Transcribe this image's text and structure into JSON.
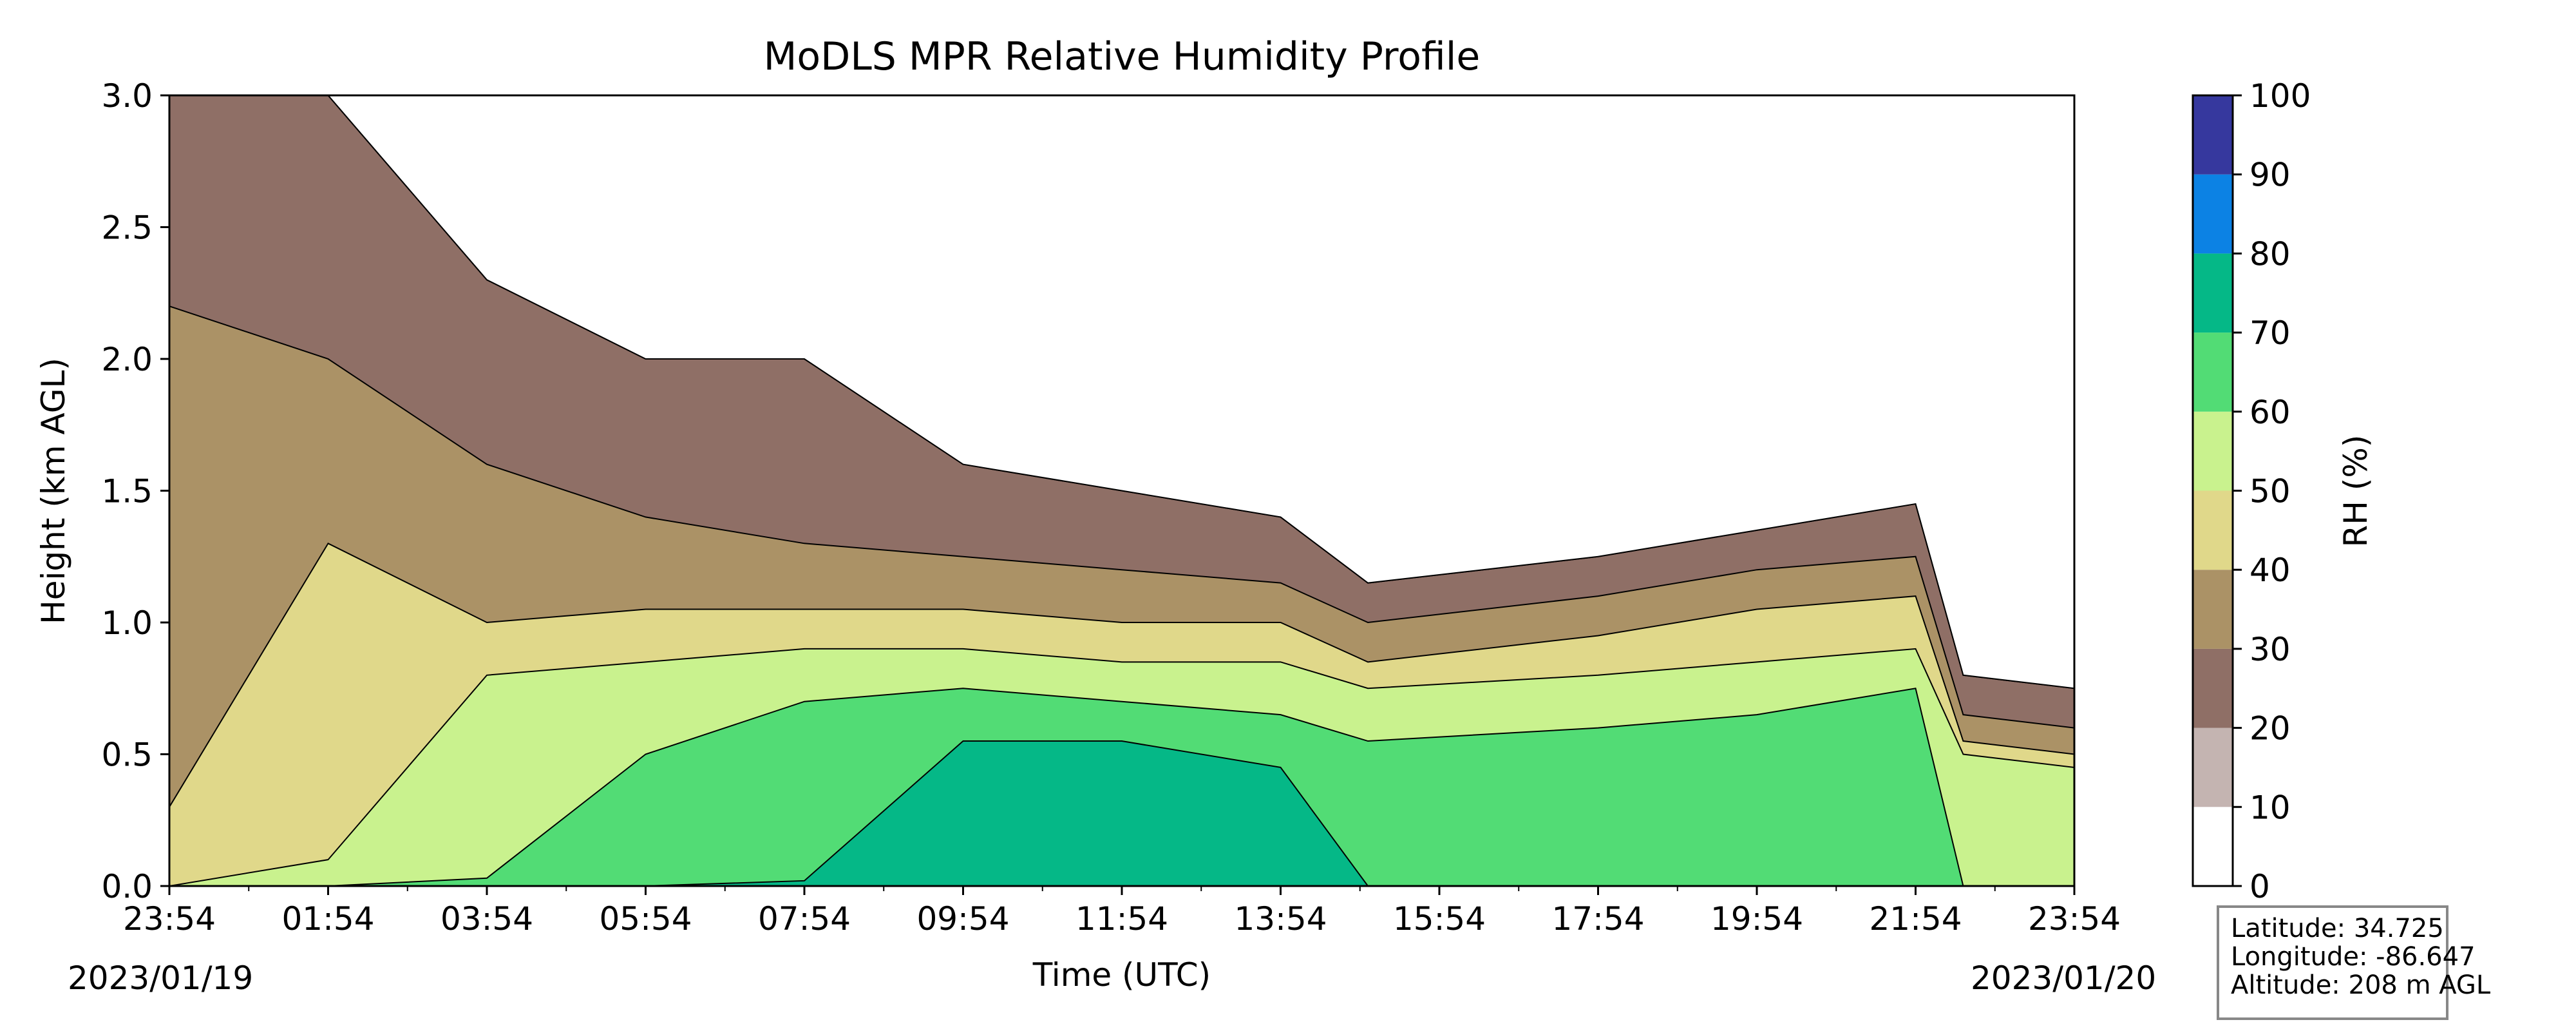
{
  "chart_data": {
    "type": "heatmap",
    "title": "MoDLS MPR Relative Humidity Profile",
    "xlabel": "Time (UTC)",
    "ylabel": "Height (km AGL)",
    "x_tick_labels": [
      "23:54",
      "01:54",
      "03:54",
      "05:54",
      "07:54",
      "09:54",
      "11:54",
      "13:54",
      "15:54",
      "17:54",
      "19:54",
      "21:54",
      "23:54"
    ],
    "x_start_date": "2023/01/19",
    "x_end_date": "2023/01/20",
    "ylim": [
      0,
      3.0
    ],
    "y_ticks": [
      0.0,
      0.5,
      1.0,
      1.5,
      2.0,
      2.5,
      3.0
    ],
    "y_tick_labels": [
      "0.0",
      "0.5",
      "1.0",
      "1.5",
      "2.0",
      "2.5",
      "3.0"
    ],
    "colorbar": {
      "label": "RH (%)",
      "ticks": [
        "0",
        "10",
        "20",
        "30",
        "40",
        "50",
        "60",
        "70",
        "80",
        "90",
        "100"
      ],
      "levels": [
        {
          "range": [
            0,
            10
          ],
          "color": "#ffffff"
        },
        {
          "range": [
            10,
            20
          ],
          "color": "#c4b4b1"
        },
        {
          "range": [
            20,
            30
          ],
          "color": "#8f6f66"
        },
        {
          "range": [
            30,
            40
          ],
          "color": "#ab9266"
        },
        {
          "range": [
            40,
            50
          ],
          "color": "#e0d88a"
        },
        {
          "range": [
            50,
            60
          ],
          "color": "#c9f28e"
        },
        {
          "range": [
            60,
            70
          ],
          "color": "#52dc75"
        },
        {
          "range": [
            70,
            80
          ],
          "color": "#05b887"
        },
        {
          "range": [
            80,
            90
          ],
          "color": "#0c82e4"
        },
        {
          "range": [
            90,
            100
          ],
          "color": "#36389e"
        }
      ]
    },
    "contour_boundaries_km": {
      "times": [
        "23:54",
        "01:54",
        "03:54",
        "05:54",
        "07:54",
        "09:54",
        "11:54",
        "13:54",
        "15:00",
        "17:54",
        "19:54",
        "21:54",
        "22:30",
        "23:54"
      ],
      "rh_60": [
        0,
        0,
        0,
        0,
        0.02,
        0.55,
        0.55,
        0.45,
        0,
        0,
        0,
        0,
        0,
        0
      ],
      "rh_50": [
        0,
        0,
        0.03,
        0.5,
        0.7,
        0.75,
        0.7,
        0.65,
        0.55,
        0.6,
        0.65,
        0.75,
        0,
        0
      ],
      "rh_40": [
        0,
        0.1,
        0.8,
        0.85,
        0.9,
        0.9,
        0.85,
        0.85,
        0.75,
        0.8,
        0.85,
        0.9,
        0.5,
        0.45
      ],
      "rh_30": [
        0.3,
        1.3,
        1.0,
        1.05,
        1.05,
        1.05,
        1.0,
        1.0,
        0.85,
        0.95,
        1.05,
        1.1,
        0.55,
        0.5
      ],
      "rh_20": [
        2.2,
        2.0,
        1.6,
        1.4,
        1.3,
        1.25,
        1.2,
        1.15,
        1.0,
        1.1,
        1.2,
        1.25,
        0.65,
        0.6
      ],
      "rh_10": [
        3.0,
        3.0,
        2.3,
        2.0,
        2.0,
        1.6,
        1.5,
        1.4,
        1.15,
        1.25,
        1.35,
        1.45,
        0.8,
        0.75
      ]
    },
    "grid": false,
    "legend": "colorbar-right"
  },
  "info": {
    "latitude": "Latitude: 34.725",
    "longitude": "Longitude: -86.647",
    "altitude": "Altitude: 208 m AGL"
  }
}
